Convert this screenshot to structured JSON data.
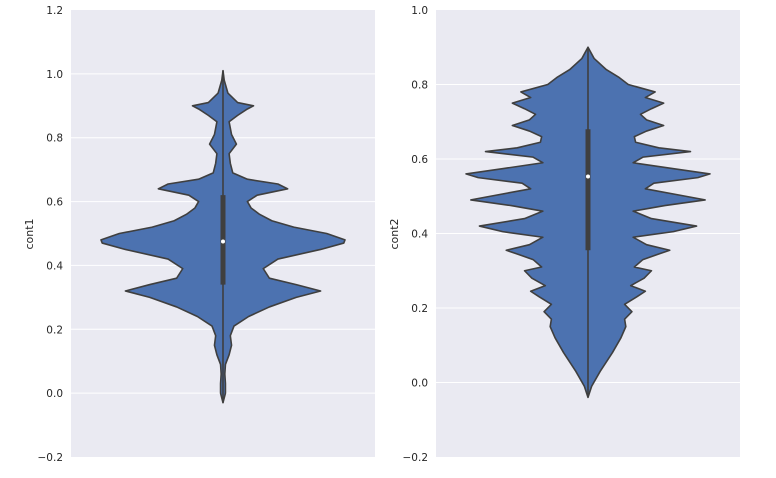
{
  "chart_data": [
    {
      "type": "violin",
      "ylabel": "cont1",
      "ylim": [
        -0.2,
        1.2
      ],
      "yticks": [
        -0.2,
        0.0,
        0.2,
        0.4,
        0.6,
        0.8,
        1.0,
        1.2
      ],
      "ytick_labels": [
        "−0.2",
        "0.0",
        "0.2",
        "0.4",
        "0.6",
        "0.8",
        "1.0",
        "1.2"
      ],
      "grid": true,
      "color": "#4c72b0",
      "background": "#eaeaf2",
      "density_profile": [
        [
          -0.03,
          0.0
        ],
        [
          0.0,
          0.02
        ],
        [
          0.03,
          0.02
        ],
        [
          0.06,
          0.015
        ],
        [
          0.09,
          0.02
        ],
        [
          0.12,
          0.05
        ],
        [
          0.15,
          0.07
        ],
        [
          0.18,
          0.06
        ],
        [
          0.21,
          0.09
        ],
        [
          0.24,
          0.21
        ],
        [
          0.27,
          0.38
        ],
        [
          0.3,
          0.6
        ],
        [
          0.32,
          0.8
        ],
        [
          0.34,
          0.6
        ],
        [
          0.36,
          0.38
        ],
        [
          0.39,
          0.33
        ],
        [
          0.42,
          0.45
        ],
        [
          0.45,
          0.8
        ],
        [
          0.47,
          0.99
        ],
        [
          0.48,
          1.0
        ],
        [
          0.5,
          0.85
        ],
        [
          0.52,
          0.58
        ],
        [
          0.54,
          0.4
        ],
        [
          0.56,
          0.3
        ],
        [
          0.58,
          0.23
        ],
        [
          0.6,
          0.2
        ],
        [
          0.62,
          0.28
        ],
        [
          0.64,
          0.53
        ],
        [
          0.655,
          0.45
        ],
        [
          0.67,
          0.2
        ],
        [
          0.69,
          0.08
        ],
        [
          0.72,
          0.06
        ],
        [
          0.75,
          0.05
        ],
        [
          0.78,
          0.11
        ],
        [
          0.81,
          0.07
        ],
        [
          0.85,
          0.05
        ],
        [
          0.87,
          0.12
        ],
        [
          0.89,
          0.2
        ],
        [
          0.9,
          0.25
        ],
        [
          0.91,
          0.12
        ],
        [
          0.94,
          0.04
        ],
        [
          0.98,
          0.01
        ],
        [
          1.01,
          0.0
        ]
      ],
      "box": {
        "q1": 0.34,
        "median": 0.475,
        "q3": 0.62,
        "whisker_low": -0.03,
        "whisker_high": 1.01
      }
    },
    {
      "type": "violin",
      "ylabel": "cont2",
      "ylim": [
        -0.2,
        1.0
      ],
      "yticks": [
        -0.2,
        0.0,
        0.2,
        0.4,
        0.6,
        0.8,
        1.0
      ],
      "ytick_labels": [
        "−0.2",
        "0.0",
        "0.2",
        "0.4",
        "0.6",
        "0.8",
        "1.0"
      ],
      "grid": true,
      "color": "#4c72b0",
      "background": "#eaeaf2",
      "density_profile": [
        [
          -0.04,
          0.0
        ],
        [
          -0.01,
          0.03
        ],
        [
          0.03,
          0.1
        ],
        [
          0.08,
          0.2
        ],
        [
          0.12,
          0.27
        ],
        [
          0.15,
          0.31
        ],
        [
          0.17,
          0.3
        ],
        [
          0.19,
          0.36
        ],
        [
          0.21,
          0.3
        ],
        [
          0.23,
          0.4
        ],
        [
          0.245,
          0.47
        ],
        [
          0.26,
          0.35
        ],
        [
          0.28,
          0.46
        ],
        [
          0.3,
          0.52
        ],
        [
          0.31,
          0.38
        ],
        [
          0.33,
          0.45
        ],
        [
          0.345,
          0.58
        ],
        [
          0.355,
          0.67
        ],
        [
          0.37,
          0.48
        ],
        [
          0.39,
          0.37
        ],
        [
          0.405,
          0.7
        ],
        [
          0.42,
          0.89
        ],
        [
          0.44,
          0.52
        ],
        [
          0.46,
          0.37
        ],
        [
          0.475,
          0.63
        ],
        [
          0.49,
          0.96
        ],
        [
          0.5,
          0.8
        ],
        [
          0.52,
          0.47
        ],
        [
          0.535,
          0.54
        ],
        [
          0.55,
          0.9
        ],
        [
          0.56,
          1.0
        ],
        [
          0.575,
          0.68
        ],
        [
          0.59,
          0.37
        ],
        [
          0.605,
          0.45
        ],
        [
          0.62,
          0.84
        ],
        [
          0.63,
          0.58
        ],
        [
          0.645,
          0.39
        ],
        [
          0.66,
          0.38
        ],
        [
          0.675,
          0.48
        ],
        [
          0.69,
          0.62
        ],
        [
          0.705,
          0.48
        ],
        [
          0.72,
          0.43
        ],
        [
          0.735,
          0.52
        ],
        [
          0.75,
          0.62
        ],
        [
          0.765,
          0.47
        ],
        [
          0.78,
          0.55
        ],
        [
          0.8,
          0.33
        ],
        [
          0.82,
          0.25
        ],
        [
          0.84,
          0.15
        ],
        [
          0.87,
          0.05
        ],
        [
          0.9,
          0.0
        ]
      ],
      "box": {
        "q1": 0.355,
        "median": 0.553,
        "q3": 0.68,
        "whisker_low": -0.04,
        "whisker_high": 0.9
      }
    }
  ]
}
